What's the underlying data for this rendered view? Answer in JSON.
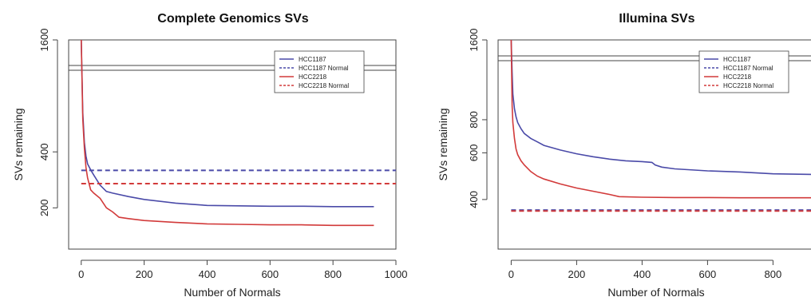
{
  "chart_data": [
    {
      "type": "line",
      "title": "Complete Genomics SVs",
      "xlabel": "Number of Normals",
      "ylabel": "SVs remaining",
      "xlim": [
        -40,
        1000
      ],
      "ylim": [
        0,
        1600
      ],
      "y_scale": "log",
      "x_ticks": [
        0,
        200,
        400,
        600,
        800,
        1000
      ],
      "y_ticks": [
        200,
        400,
        1600
      ],
      "legend_position": "top-right",
      "grid": false,
      "series": [
        {
          "name": "HCC1187",
          "color": "#4a4aa8",
          "dash": "solid",
          "x": [
            0,
            5,
            10,
            15,
            20,
            30,
            40,
            60,
            80,
            100,
            150,
            200,
            300,
            400,
            500,
            600,
            700,
            800,
            930
          ],
          "y": [
            1600,
            650,
            450,
            380,
            345,
            320,
            300,
            265,
            245,
            240,
            230,
            222,
            212,
            206,
            205,
            204,
            204,
            203,
            203
          ]
        },
        {
          "name": "HCC1187 Normal",
          "color": "#4a4aa8",
          "dash": "dashed",
          "x": [
            0,
            1000
          ],
          "y": [
            318,
            318
          ]
        },
        {
          "name": "HCC2218",
          "color": "#d23a3a",
          "dash": "solid",
          "x": [
            0,
            5,
            10,
            15,
            20,
            30,
            40,
            60,
            80,
            100,
            120,
            150,
            200,
            300,
            400,
            500,
            600,
            700,
            800,
            930
          ],
          "y": [
            1600,
            600,
            420,
            330,
            290,
            250,
            240,
            225,
            200,
            190,
            178,
            175,
            171,
            167,
            164,
            163,
            162,
            162,
            161,
            161
          ]
        },
        {
          "name": "HCC2218 Normal",
          "color": "#d23a3a",
          "dash": "dashed",
          "x": [
            0,
            1000
          ],
          "y": [
            270,
            270
          ]
        }
      ]
    },
    {
      "type": "line",
      "title": "Illumina SVs",
      "xlabel": "Number of Normals",
      "ylabel": "SVs remaining",
      "xlim": [
        -40,
        960
      ],
      "ylim": [
        0,
        1600
      ],
      "y_scale": "log",
      "x_ticks": [
        0,
        200,
        400,
        600,
        800
      ],
      "y_ticks": [
        400,
        600,
        800,
        1600
      ],
      "legend_position": "top-right",
      "grid": false,
      "series": [
        {
          "name": "HCC1187",
          "color": "#4a4aa8",
          "dash": "solid",
          "x": [
            0,
            3,
            5,
            10,
            15,
            20,
            30,
            40,
            60,
            80,
            100,
            150,
            200,
            250,
            300,
            350,
            400,
            430,
            440,
            460,
            500,
            600,
            700,
            800,
            940
          ],
          "y": [
            1600,
            1200,
            1000,
            880,
            820,
            780,
            740,
            710,
            680,
            660,
            640,
            615,
            595,
            580,
            568,
            560,
            556,
            552,
            540,
            530,
            522,
            513,
            508,
            500,
            497
          ]
        },
        {
          "name": "HCC1187 Normal",
          "color": "#4a4aa8",
          "dash": "dashed",
          "x": [
            0,
            960
          ],
          "y": [
            365,
            365
          ]
        },
        {
          "name": "HCC2218",
          "color": "#d23a3a",
          "dash": "solid",
          "x": [
            0,
            3,
            5,
            10,
            15,
            20,
            30,
            40,
            60,
            80,
            100,
            150,
            200,
            250,
            300,
            330,
            400,
            500,
            600,
            700,
            800,
            940
          ],
          "y": [
            1600,
            900,
            780,
            680,
            620,
            590,
            560,
            540,
            510,
            490,
            478,
            458,
            442,
            430,
            418,
            410,
            408,
            407,
            407,
            406,
            406,
            406
          ]
        },
        {
          "name": "HCC2218 Normal",
          "color": "#d23a3a",
          "dash": "dashed",
          "x": [
            0,
            960
          ],
          "y": [
            362,
            362
          ]
        }
      ]
    }
  ]
}
